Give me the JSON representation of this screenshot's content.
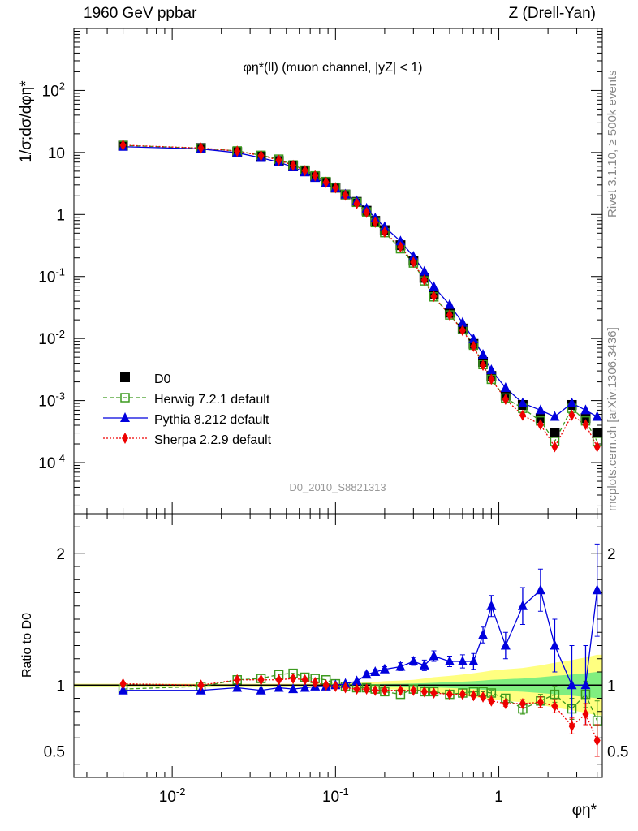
{
  "header": {
    "left": "1960 GeV ppbar",
    "right": "Z (Drell-Yan)",
    "sidebar_top": "Rivet 3.1.10, ≥ 500k events",
    "sidebar_bottom": "mcplots.cern.ch [arXiv:1306.3436]"
  },
  "chart_data": [
    {
      "type": "scatter",
      "panel": "main",
      "title": "φη*(ll) (muon channel, |yZ| < 1)",
      "ylabel": "1/σ;dσ/dφη*",
      "xlabel": "",
      "watermark": "D0_2010_S8821313",
      "xscale": "log",
      "yscale": "log",
      "xlim": [
        0.0025,
        4.3
      ],
      "ylim": [
        1.5e-05,
        1000
      ],
      "x_ticks": [
        "10^{-2}",
        "10^{-1}",
        "1"
      ],
      "y_ticks": [
        "10^{-4}",
        "10^{-3}",
        "10^{-2}",
        "10^{-1}",
        "1",
        "10",
        "10^{2}"
      ],
      "legend_position": "bottom-left",
      "x": [
        0.005,
        0.015,
        0.025,
        0.035,
        0.045,
        0.055,
        0.065,
        0.075,
        0.0875,
        0.1,
        0.115,
        0.135,
        0.155,
        0.175,
        0.2,
        0.25,
        0.3,
        0.35,
        0.4,
        0.5,
        0.6,
        0.7,
        0.8,
        0.9,
        1.1,
        1.4,
        1.8,
        2.2,
        2.8,
        3.4,
        4.0
      ],
      "series": [
        {
          "name": "D0",
          "marker": "square-filled",
          "color": "#000000",
          "values": [
            12.9,
            11.8,
            10.2,
            8.6,
            7.3,
            6.0,
            5.0,
            4.1,
            3.3,
            2.7,
            2.1,
            1.6,
            1.15,
            0.79,
            0.56,
            0.32,
            0.18,
            0.095,
            0.052,
            0.026,
            0.0145,
            0.0082,
            0.0042,
            0.0025,
            0.0012,
            0.00085,
            0.00052,
            0.0003,
            0.00085,
            0.00052,
            0.0003
          ]
        },
        {
          "name": "Herwig 7.2.1 default",
          "marker": "square-open",
          "line": "dashed",
          "color": "#3c9a1e",
          "values": [
            13.0,
            11.7,
            10.6,
            9.0,
            7.8,
            6.3,
            5.2,
            4.2,
            3.4,
            2.75,
            2.1,
            1.57,
            1.1,
            0.74,
            0.51,
            0.28,
            0.165,
            0.085,
            0.047,
            0.024,
            0.014,
            0.0078,
            0.0038,
            0.0022,
            0.0011,
            0.00075,
            0.00047,
            0.00022,
            0.00075,
            0.00047,
            0.00022
          ]
        },
        {
          "name": "Pythia 8.212 default",
          "marker": "triangle-filled",
          "line": "solid",
          "color": "#0000dd",
          "values": [
            12.4,
            11.4,
            9.9,
            8.2,
            7.0,
            5.8,
            4.8,
            3.9,
            3.2,
            2.7,
            2.1,
            1.65,
            1.25,
            0.87,
            0.63,
            0.37,
            0.21,
            0.12,
            0.068,
            0.035,
            0.018,
            0.0098,
            0.0055,
            0.0031,
            0.0016,
            0.00091,
            0.0007,
            0.00055,
            0.00091,
            0.0007,
            0.00055
          ]
        },
        {
          "name": "Sherpa 2.2.9 default",
          "marker": "diamond-filled",
          "line": "dotted",
          "color": "#ee0000",
          "values": [
            13.1,
            11.8,
            10.5,
            8.9,
            7.5,
            6.2,
            5.1,
            4.2,
            3.3,
            2.7,
            2.05,
            1.5,
            1.08,
            0.75,
            0.52,
            0.3,
            0.17,
            0.088,
            0.048,
            0.024,
            0.0135,
            0.0075,
            0.0037,
            0.0022,
            0.00105,
            0.00058,
            0.00041,
            0.00018,
            0.00058,
            0.00041,
            0.00018
          ]
        }
      ]
    },
    {
      "type": "scatter",
      "panel": "ratio",
      "ylabel": "Ratio to D0",
      "xlabel": "φη*",
      "xscale": "log",
      "xlim": [
        0.0025,
        4.3
      ],
      "ylim": [
        0.3,
        2.3
      ],
      "x_ticks": [
        "10^{-2}",
        "10^{-1}",
        "1"
      ],
      "y_ticks": [
        "0.5",
        "1",
        "2"
      ],
      "x": [
        0.005,
        0.015,
        0.025,
        0.035,
        0.045,
        0.055,
        0.065,
        0.075,
        0.0875,
        0.1,
        0.115,
        0.135,
        0.155,
        0.175,
        0.2,
        0.25,
        0.3,
        0.35,
        0.4,
        0.5,
        0.6,
        0.7,
        0.8,
        0.9,
        1.1,
        1.4,
        1.8,
        2.2,
        2.8,
        3.4,
        4.0
      ],
      "band_stat_halfwidth": [
        0.005,
        0.005,
        0.005,
        0.005,
        0.005,
        0.005,
        0.005,
        0.005,
        0.005,
        0.006,
        0.006,
        0.006,
        0.007,
        0.008,
        0.009,
        0.01,
        0.012,
        0.015,
        0.018,
        0.022,
        0.026,
        0.03,
        0.035,
        0.04,
        0.045,
        0.05,
        0.06,
        0.07,
        0.08,
        0.09,
        0.1
      ],
      "band_total_halfwidth": [
        0.01,
        0.01,
        0.01,
        0.01,
        0.01,
        0.01,
        0.01,
        0.012,
        0.013,
        0.014,
        0.016,
        0.018,
        0.02,
        0.025,
        0.03,
        0.035,
        0.04,
        0.05,
        0.06,
        0.07,
        0.08,
        0.09,
        0.1,
        0.11,
        0.12,
        0.13,
        0.15,
        0.17,
        0.19,
        0.21,
        0.23
      ],
      "series": [
        {
          "name": "Herwig 7.2.1 default",
          "color": "#3c9a1e",
          "values": [
            0.97,
            0.99,
            1.04,
            1.05,
            1.08,
            1.09,
            1.06,
            1.05,
            1.04,
            1.01,
            0.99,
            0.98,
            0.98,
            0.97,
            0.95,
            0.93,
            0.97,
            0.95,
            0.95,
            0.93,
            0.94,
            0.95,
            0.95,
            0.94,
            0.9,
            0.82,
            0.88,
            0.93,
            0.82,
            0.93,
            0.73
          ],
          "err": [
            0,
            0,
            0,
            0,
            0,
            0,
            0,
            0,
            0,
            0,
            0,
            0,
            0,
            0,
            0,
            0,
            0,
            0,
            0,
            0,
            0,
            0,
            0,
            0.02,
            0.03,
            0.04,
            0.05,
            0.06,
            0.08,
            0.1,
            0.15
          ]
        },
        {
          "name": "Pythia 8.212 default",
          "color": "#0000dd",
          "values": [
            0.96,
            0.96,
            0.98,
            0.96,
            0.98,
            0.97,
            0.98,
            0.99,
            0.99,
            1.0,
            1.01,
            1.03,
            1.08,
            1.1,
            1.12,
            1.14,
            1.18,
            1.15,
            1.22,
            1.18,
            1.18,
            1.18,
            1.38,
            1.6,
            1.3,
            1.6,
            1.72,
            1.3,
            1.0,
            1.0,
            1.72
          ],
          "err": [
            0,
            0,
            0,
            0,
            0,
            0,
            0,
            0,
            0,
            0,
            0,
            0,
            0.02,
            0.02,
            0.02,
            0.03,
            0.03,
            0.04,
            0.04,
            0.04,
            0.05,
            0.06,
            0.06,
            0.08,
            0.1,
            0.14,
            0.16,
            0.2,
            0.3,
            0.3,
            0.35
          ]
        },
        {
          "name": "Sherpa 2.2.9 default",
          "color": "#ee0000",
          "values": [
            1.01,
            1.0,
            1.04,
            1.04,
            1.04,
            1.05,
            1.04,
            1.02,
            1.0,
            0.99,
            0.98,
            0.97,
            0.97,
            0.96,
            0.96,
            0.96,
            0.96,
            0.95,
            0.94,
            0.93,
            0.93,
            0.92,
            0.91,
            0.88,
            0.86,
            0.86,
            0.87,
            0.84,
            0.69,
            0.78,
            0.58
          ],
          "err": [
            0,
            0,
            0,
            0,
            0,
            0,
            0,
            0,
            0,
            0,
            0,
            0,
            0,
            0,
            0,
            0,
            0,
            0,
            0,
            0,
            0,
            0,
            0,
            0.01,
            0.02,
            0.03,
            0.04,
            0.05,
            0.06,
            0.08,
            0.12
          ]
        }
      ]
    }
  ]
}
